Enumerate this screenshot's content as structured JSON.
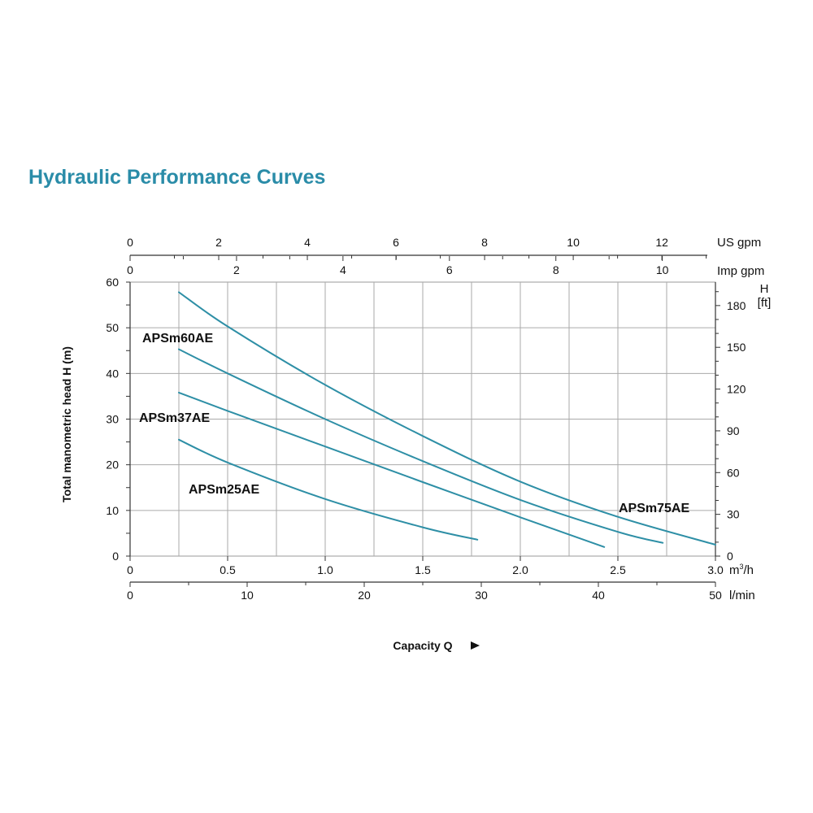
{
  "title": "Hydraulic Performance Curves",
  "chart_data": {
    "type": "line",
    "title": "Hydraulic Performance Curves",
    "xlabel": "Capacity Q",
    "ylabel": "Total manometric head H (m)",
    "xlim": [
      0,
      3.0
    ],
    "ylim": [
      0,
      60
    ],
    "grid": true,
    "axes": {
      "x_m3h": {
        "unit": "m³/h",
        "ticks": [
          0,
          0.5,
          1.0,
          1.5,
          2.0,
          2.5,
          3.0
        ],
        "tick_labels": [
          "0",
          "0.5",
          "1.0",
          "1.5",
          "2.0",
          "2.5",
          "3.0"
        ]
      },
      "x_lmin": {
        "unit": "l/min",
        "ticks": [
          0,
          10,
          20,
          30,
          40,
          50
        ],
        "tick_labels": [
          "0",
          "10",
          "20",
          "30",
          "40",
          "50"
        ]
      },
      "x_usgpm": {
        "unit": "US gpm",
        "ticks": [
          0,
          2,
          4,
          6,
          8,
          10,
          12
        ],
        "tick_labels": [
          "0",
          "2",
          "4",
          "6",
          "8",
          "10",
          "12"
        ]
      },
      "x_impgpm": {
        "unit": "Imp gpm",
        "ticks": [
          0,
          2,
          4,
          6,
          8,
          10
        ],
        "tick_labels": [
          "0",
          "2",
          "4",
          "6",
          "8",
          "10"
        ]
      },
      "y_m": {
        "ticks": [
          0,
          10,
          20,
          30,
          40,
          50,
          60
        ],
        "tick_labels": [
          "0",
          "10",
          "20",
          "30",
          "40",
          "50",
          "60"
        ]
      },
      "y_ft": {
        "unit_line1": "H",
        "unit_line2": "[ft]",
        "ticks": [
          0,
          30,
          60,
          90,
          120,
          150,
          180
        ],
        "tick_labels": [
          "0",
          "30",
          "60",
          "90",
          "120",
          "150",
          "180"
        ]
      }
    },
    "series": [
      {
        "name": "APSm25AE",
        "x": [
          0.25,
          0.5,
          1.0,
          1.5,
          1.78
        ],
        "y": [
          25.5,
          20.5,
          12.5,
          6.3,
          3.6
        ]
      },
      {
        "name": "APSm37AE",
        "x": [
          0.25,
          0.5,
          1.0,
          1.5,
          2.0,
          2.43
        ],
        "y": [
          35.8,
          31.8,
          24.0,
          16.2,
          8.5,
          2.0
        ]
      },
      {
        "name": "APSm60AE",
        "x": [
          0.25,
          0.5,
          1.0,
          1.5,
          2.0,
          2.5,
          2.73
        ],
        "y": [
          45.3,
          40.0,
          30.0,
          20.8,
          12.3,
          5.3,
          2.9
        ]
      },
      {
        "name": "APSm75AE",
        "x": [
          0.25,
          0.5,
          1.0,
          1.5,
          2.0,
          2.5,
          3.0
        ],
        "y": [
          57.8,
          50.3,
          37.5,
          26.3,
          16.3,
          8.6,
          2.5
        ]
      }
    ],
    "line_color": "#2e8fa6"
  }
}
